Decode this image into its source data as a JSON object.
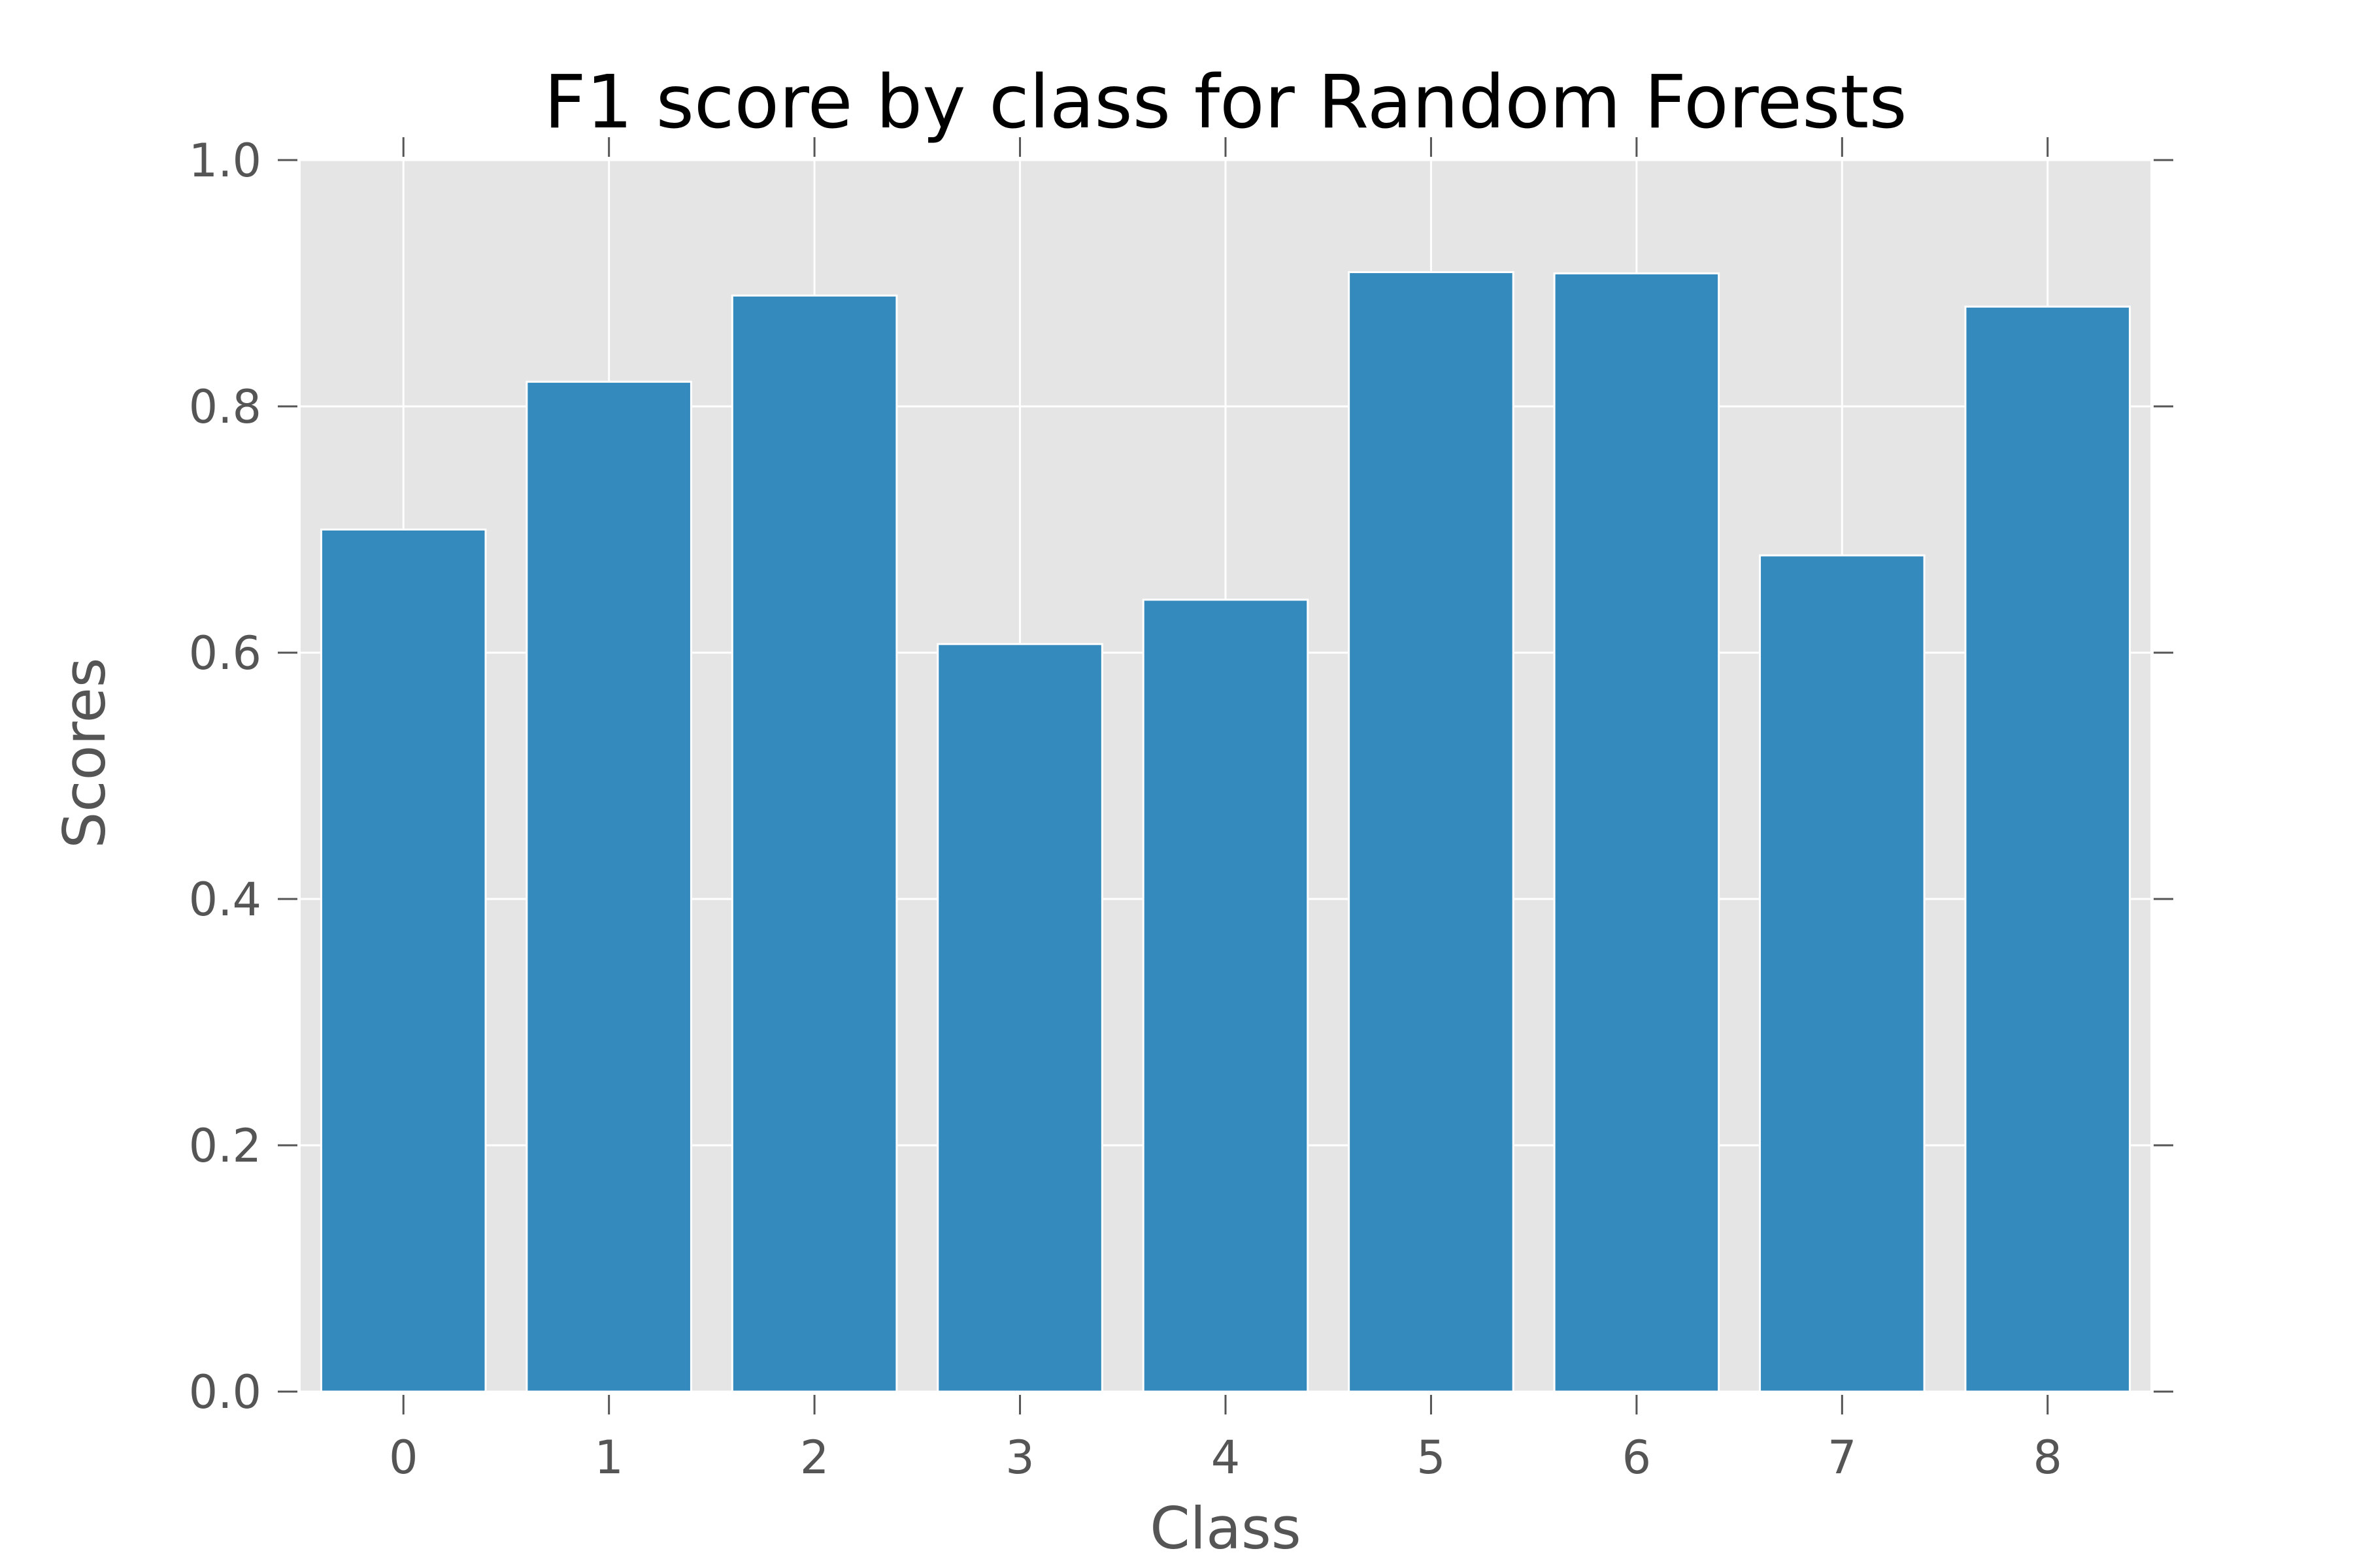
{
  "chart_data": {
    "type": "bar",
    "title": "F1 score by class for Random Forests",
    "xlabel": "Class",
    "ylabel": "Scores",
    "categories": [
      "0",
      "1",
      "2",
      "3",
      "4",
      "5",
      "6",
      "7",
      "8"
    ],
    "values": [
      0.7,
      0.82,
      0.89,
      0.607,
      0.643,
      0.909,
      0.908,
      0.679,
      0.881
    ],
    "ylim": [
      0,
      1.0
    ],
    "yticks": [
      "0.0",
      "0.2",
      "0.4",
      "0.6",
      "0.8",
      "1.0"
    ],
    "grid": true,
    "colors": {
      "bar": "#348ABD",
      "plot_background": "#E5E5E5",
      "grid": "#FFFFFF",
      "tick": "#555555"
    }
  }
}
